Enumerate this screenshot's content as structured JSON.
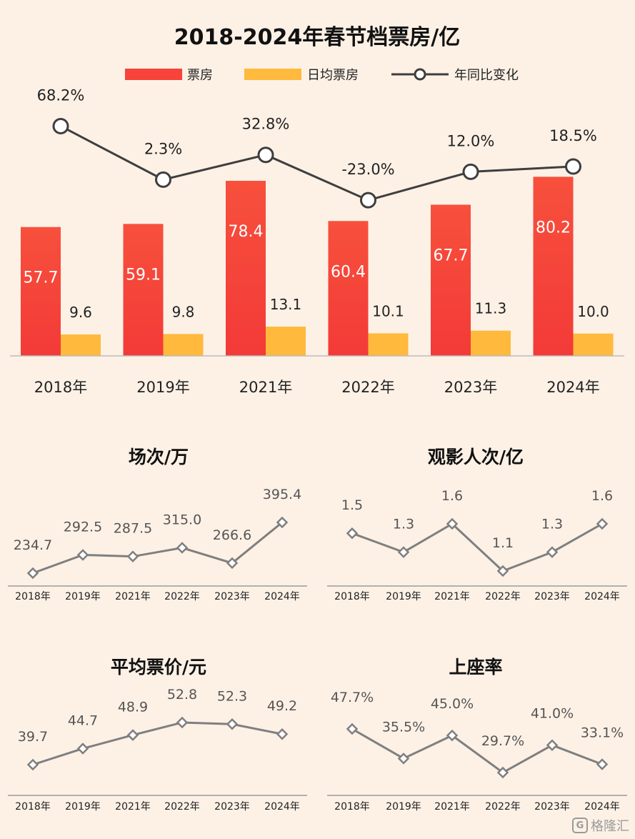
{
  "main_chart": {
    "title": "2018-2024年春节档票房/亿",
    "legend": {
      "box_office": "票房",
      "daily_avg": "日均票房",
      "yoy": "年同比变化"
    },
    "colors": {
      "box_office": "#f7433a",
      "daily_avg": "#ffb93c",
      "yoy": "#3e3e3e"
    }
  },
  "small_charts": {
    "screenings": {
      "title": "场次/万"
    },
    "admissions": {
      "title": "观影人次/亿"
    },
    "avg_price": {
      "title": "平均票价/元"
    },
    "occupancy": {
      "title": "上座率"
    }
  },
  "chart_data": [
    {
      "type": "bar",
      "title": "2018-2024年春节档票房/亿",
      "categories": [
        "2018年",
        "2019年",
        "2021年",
        "2022年",
        "2023年",
        "2024年"
      ],
      "series": [
        {
          "name": "票房",
          "values": [
            57.7,
            59.1,
            78.4,
            60.4,
            67.7,
            80.2
          ]
        },
        {
          "name": "日均票房",
          "values": [
            9.6,
            9.8,
            13.1,
            10.1,
            11.3,
            10.0
          ]
        },
        {
          "name": "年同比变化",
          "type": "line",
          "values": [
            68.2,
            2.3,
            32.8,
            -23.0,
            12.0,
            18.5
          ],
          "labels": [
            "68.2%",
            "2.3%",
            "32.8%",
            "-23.0%",
            "12.0%",
            "18.5%"
          ]
        }
      ],
      "legend": "top"
    },
    {
      "type": "line",
      "title": "场次/万",
      "categories": [
        "2018年",
        "2019年",
        "2021年",
        "2022年",
        "2023年",
        "2024年"
      ],
      "values": [
        234.7,
        292.5,
        287.5,
        315.0,
        266.6,
        395.4
      ],
      "labels": [
        "234.7",
        "292.5",
        "287.5",
        "315.0",
        "266.6",
        "395.4"
      ]
    },
    {
      "type": "line",
      "title": "观影人次/亿",
      "categories": [
        "2018年",
        "2019年",
        "2021年",
        "2022年",
        "2023年",
        "2024年"
      ],
      "values": [
        1.5,
        1.3,
        1.6,
        1.1,
        1.3,
        1.6
      ],
      "labels": [
        "1.5",
        "1.3",
        "1.6",
        "1.1",
        "1.3",
        "1.6"
      ]
    },
    {
      "type": "line",
      "title": "平均票价/元",
      "categories": [
        "2018年",
        "2019年",
        "2021年",
        "2022年",
        "2023年",
        "2024年"
      ],
      "values": [
        39.7,
        44.7,
        48.9,
        52.8,
        52.3,
        49.2
      ],
      "labels": [
        "39.7",
        "44.7",
        "48.9",
        "52.8",
        "52.3",
        "49.2"
      ]
    },
    {
      "type": "line",
      "title": "上座率",
      "categories": [
        "2018年",
        "2019年",
        "2021年",
        "2022年",
        "2023年",
        "2024年"
      ],
      "values": [
        47.7,
        35.5,
        45.0,
        29.7,
        41.0,
        33.1
      ],
      "labels": [
        "47.7%",
        "35.5%",
        "45.0%",
        "29.7%",
        "41.0%",
        "33.1%"
      ]
    }
  ],
  "watermark": {
    "logo": "G",
    "text": "格隆汇"
  }
}
